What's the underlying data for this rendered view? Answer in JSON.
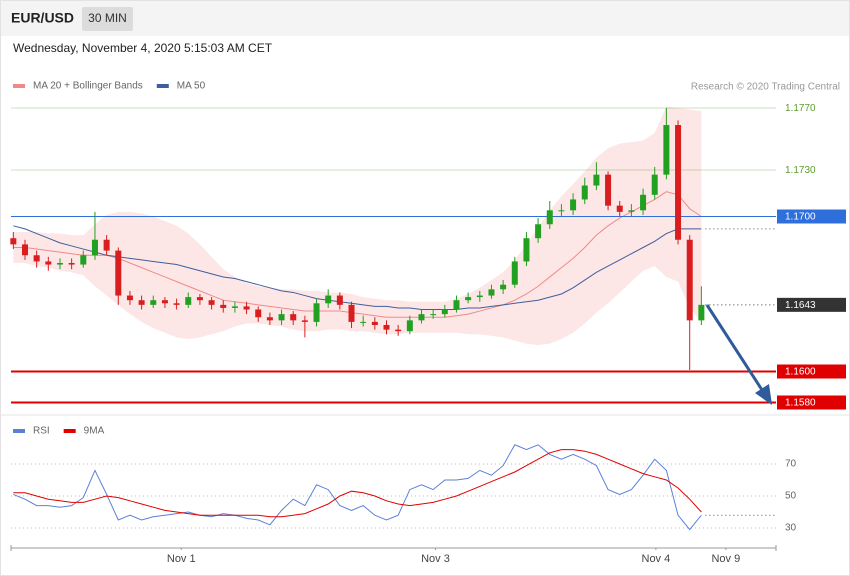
{
  "chart_data": [
    {
      "type": "candlestick",
      "title": "EUR/USD",
      "interval": "30 MIN",
      "timestamp": "Wednesday, November 4, 2020 5:15:03 AM CET",
      "credit": "Research © 2020 Trading Central",
      "up_color": "#22a022",
      "down_color": "#d81e1e",
      "xlim": [
        -0.2,
        65.4
      ],
      "ylim": [
        1.1575,
        1.1775
      ],
      "open": [
        1.1686,
        1.1682,
        1.1675,
        1.1671,
        1.1669,
        1.167,
        1.1669,
        1.1675,
        1.1685,
        1.1678,
        1.1649,
        1.1646,
        1.1643,
        1.1646,
        1.1644,
        1.1643,
        1.1648,
        1.1646,
        1.1643,
        1.1641,
        1.1642,
        1.164,
        1.1635,
        1.1633,
        1.1637,
        1.1633,
        1.1632,
        1.1644,
        1.1649,
        1.1643,
        1.1632,
        1.1632,
        1.163,
        1.1627,
        1.1626,
        1.1633,
        1.1637,
        1.1637,
        1.164,
        1.1646,
        1.1648,
        1.1649,
        1.1653,
        1.1656,
        1.1671,
        1.1686,
        1.1695,
        1.1704,
        1.1704,
        1.1711,
        1.172,
        1.1727,
        1.1707,
        1.1703,
        1.1704,
        1.1714,
        1.1727,
        1.1759,
        1.1685,
        1.1633
      ],
      "high": [
        1.169,
        1.1685,
        1.1678,
        1.1674,
        1.1673,
        1.1673,
        1.1678,
        1.1703,
        1.1688,
        1.168,
        1.1652,
        1.1649,
        1.1649,
        1.1648,
        1.1647,
        1.1651,
        1.165,
        1.1648,
        1.1646,
        1.1645,
        1.1645,
        1.1642,
        1.1638,
        1.164,
        1.1639,
        1.1636,
        1.1647,
        1.1653,
        1.1651,
        1.1645,
        1.1636,
        1.1635,
        1.1633,
        1.163,
        1.1636,
        1.164,
        1.164,
        1.1643,
        1.1649,
        1.1651,
        1.1652,
        1.1656,
        1.1659,
        1.1674,
        1.169,
        1.1699,
        1.171,
        1.1708,
        1.1715,
        1.1725,
        1.1735,
        1.1729,
        1.171,
        1.1708,
        1.1718,
        1.1732,
        1.177,
        1.1762,
        1.1688,
        1.1655
      ],
      "low": [
        1.1679,
        1.1672,
        1.1667,
        1.1665,
        1.1666,
        1.1666,
        1.1667,
        1.1672,
        1.1675,
        1.1643,
        1.1643,
        1.164,
        1.1641,
        1.1641,
        1.164,
        1.1641,
        1.1643,
        1.164,
        1.1638,
        1.1638,
        1.1637,
        1.1632,
        1.163,
        1.163,
        1.163,
        1.1622,
        1.1629,
        1.1641,
        1.164,
        1.1628,
        1.1629,
        1.1627,
        1.1624,
        1.1623,
        1.1624,
        1.1631,
        1.1634,
        1.1635,
        1.1638,
        1.1644,
        1.1645,
        1.1647,
        1.165,
        1.1654,
        1.1668,
        1.1683,
        1.1692,
        1.17,
        1.1701,
        1.1708,
        1.1717,
        1.1704,
        1.17,
        1.17,
        1.1701,
        1.1711,
        1.1724,
        1.1682,
        1.1601,
        1.163
      ],
      "close": [
        1.1682,
        1.1675,
        1.1671,
        1.1669,
        1.167,
        1.1669,
        1.1675,
        1.1685,
        1.1678,
        1.1649,
        1.1646,
        1.1643,
        1.1646,
        1.1644,
        1.1643,
        1.1648,
        1.1646,
        1.1643,
        1.1641,
        1.1642,
        1.164,
        1.1635,
        1.1633,
        1.1637,
        1.1633,
        1.1632,
        1.1644,
        1.1649,
        1.1643,
        1.1632,
        1.1632,
        1.163,
        1.1627,
        1.1626,
        1.1633,
        1.1637,
        1.1637,
        1.164,
        1.1646,
        1.1648,
        1.1649,
        1.1653,
        1.1656,
        1.1671,
        1.1686,
        1.1695,
        1.1704,
        1.1704,
        1.1711,
        1.172,
        1.1727,
        1.1707,
        1.1703,
        1.1704,
        1.1714,
        1.1727,
        1.1759,
        1.1685,
        1.1633,
        1.1643
      ],
      "series": [
        {
          "name": "MA 20 + Bollinger Bands",
          "color": "#f08a8a",
          "band_color": "#fde0e0",
          "values": [
            1.168,
            1.168,
            1.1679,
            1.1678,
            1.1677,
            1.1676,
            1.1675,
            1.1675,
            1.1675,
            1.1673,
            1.167,
            1.1667,
            1.1664,
            1.1661,
            1.1658,
            1.1655,
            1.1652,
            1.1649,
            1.1646,
            1.1645,
            1.1644,
            1.1643,
            1.1642,
            1.1641,
            1.164,
            1.1639,
            1.1639,
            1.1639,
            1.1639,
            1.1638,
            1.1637,
            1.1636,
            1.1635,
            1.1635,
            1.1635,
            1.1635,
            1.1635,
            1.1635,
            1.1636,
            1.1637,
            1.1639,
            1.1641,
            1.1643,
            1.1646,
            1.165,
            1.1655,
            1.1661,
            1.1667,
            1.1673,
            1.168,
            1.1688,
            1.1694,
            1.1699,
            1.1703,
            1.1707,
            1.1711,
            1.1716,
            1.1714,
            1.1705,
            1.17
          ],
          "upper": [
            1.169,
            1.169,
            1.169,
            1.1689,
            1.1689,
            1.1688,
            1.1688,
            1.1695,
            1.1701,
            1.1703,
            1.1703,
            1.1702,
            1.17,
            1.1697,
            1.1694,
            1.1689,
            1.1682,
            1.1674,
            1.1666,
            1.1661,
            1.1657,
            1.1655,
            1.1654,
            1.1653,
            1.1653,
            1.1652,
            1.1652,
            1.1651,
            1.1651,
            1.165,
            1.1648,
            1.1647,
            1.1646,
            1.1646,
            1.1645,
            1.1645,
            1.1645,
            1.1645,
            1.1647,
            1.165,
            1.1654,
            1.1659,
            1.1664,
            1.1672,
            1.1682,
            1.1693,
            1.1704,
            1.1713,
            1.1721,
            1.1729,
            1.1738,
            1.1744,
            1.1747,
            1.1748,
            1.1749,
            1.1754,
            1.1771,
            1.177,
            1.1769,
            1.1768
          ],
          "lower": [
            1.167,
            1.167,
            1.1668,
            1.1667,
            1.1665,
            1.1664,
            1.1662,
            1.1655,
            1.1649,
            1.1643,
            1.1637,
            1.1632,
            1.1628,
            1.1625,
            1.1622,
            1.1621,
            1.1622,
            1.1624,
            1.1626,
            1.1629,
            1.1631,
            1.1631,
            1.163,
            1.1629,
            1.1627,
            1.1626,
            1.1626,
            1.1627,
            1.1627,
            1.1626,
            1.1626,
            1.1625,
            1.1624,
            1.1624,
            1.1625,
            1.1625,
            1.1625,
            1.1625,
            1.1625,
            1.1624,
            1.1624,
            1.1623,
            1.1622,
            1.162,
            1.1618,
            1.1617,
            1.1618,
            1.1621,
            1.1625,
            1.1631,
            1.1638,
            1.1644,
            1.1651,
            1.1658,
            1.1665,
            1.1668,
            1.1661,
            1.1658,
            1.1641,
            1.1632
          ]
        },
        {
          "name": "MA 50",
          "color": "#3d5f9e",
          "marker_line": true,
          "values": [
            1.1694,
            1.1692,
            1.1689,
            1.1686,
            1.1683,
            1.1681,
            1.1679,
            1.1677,
            1.1675,
            1.1674,
            1.1673,
            1.1672,
            1.1671,
            1.167,
            1.1669,
            1.1667,
            1.1665,
            1.1663,
            1.1661,
            1.166,
            1.1658,
            1.1656,
            1.1654,
            1.1652,
            1.1651,
            1.1649,
            1.1647,
            1.1646,
            1.1645,
            1.1644,
            1.1643,
            1.1642,
            1.1642,
            1.1641,
            1.1641,
            1.164,
            1.164,
            1.164,
            1.164,
            1.1641,
            1.1641,
            1.1642,
            1.1643,
            1.1644,
            1.1645,
            1.1646,
            1.1648,
            1.165,
            1.1654,
            1.1659,
            1.1664,
            1.1668,
            1.1672,
            1.1676,
            1.168,
            1.1684,
            1.1689,
            1.1692,
            1.1692,
            1.1692
          ]
        }
      ],
      "levels": [
        {
          "value": 1.177,
          "label": "1.1770",
          "color": "#5c9e2e",
          "style": "solid",
          "line_width": 0.6,
          "box": false
        },
        {
          "value": 1.173,
          "label": "1.1730",
          "color": "#5c9e2e",
          "style": "solid",
          "line_width": 0.6,
          "box": false
        },
        {
          "value": 1.17,
          "label": "1.1700",
          "color": "#2f6fdc",
          "style": "solid",
          "line_width": 1,
          "box": true
        },
        {
          "value": 1.1643,
          "label": "1.1643",
          "color": "#333333",
          "style": "dotted",
          "line_width": 1,
          "box": true
        },
        {
          "value": 1.16,
          "label": "1.1600",
          "color": "#e00000",
          "style": "solid",
          "line_width": 2,
          "box": true
        },
        {
          "value": 1.158,
          "label": "1.1580",
          "color": "#e00000",
          "style": "solid",
          "line_width": 2,
          "box": true
        }
      ]
    },
    {
      "type": "line",
      "xlim": [
        -0.2,
        65.4
      ],
      "ylim": [
        20,
        85
      ],
      "yticks": [
        30,
        50,
        70
      ],
      "grid": true,
      "xticks": [
        {
          "value": 14.4,
          "label": "Nov 1"
        },
        {
          "value": 36.2,
          "label": "Nov 3"
        },
        {
          "value": 55.1,
          "label": "Nov 4"
        },
        {
          "value": 61.1,
          "label": "Nov 9"
        }
      ],
      "series": [
        {
          "name": "RSI",
          "color": "#5b80d8",
          "marker_line": true,
          "values": [
            51,
            48,
            44,
            44,
            43,
            44,
            49,
            66,
            51,
            35,
            38,
            35,
            37,
            38,
            39,
            40,
            38,
            37,
            39,
            38,
            36,
            35,
            32,
            41,
            48,
            44,
            57,
            54,
            44,
            41,
            44,
            38,
            35,
            38,
            54,
            57,
            54,
            60,
            60,
            61,
            66,
            63,
            69,
            82,
            79,
            82,
            76,
            73,
            76,
            73,
            69,
            54,
            51,
            54,
            63,
            73,
            66,
            38,
            29,
            38
          ]
        },
        {
          "name": "9MA",
          "color": "#e00000",
          "values": [
            52,
            52,
            50,
            48,
            47,
            46,
            46,
            48,
            50,
            49,
            47,
            45,
            43,
            41,
            40,
            39,
            38,
            38,
            38,
            38,
            38,
            38,
            37,
            37,
            38,
            39,
            42,
            45,
            50,
            53,
            52,
            50,
            47,
            45,
            44,
            45,
            46,
            48,
            50,
            53,
            56,
            59,
            62,
            65,
            69,
            73,
            77,
            79,
            79,
            78,
            76,
            73,
            70,
            67,
            64,
            62,
            60,
            55,
            48,
            40
          ]
        }
      ]
    }
  ]
}
